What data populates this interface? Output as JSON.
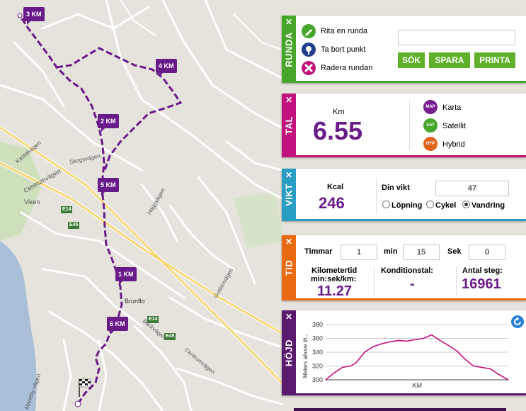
{
  "colors": {
    "runda": "#46a62a",
    "tal": "#c2127d",
    "vikt": "#2a9dc4",
    "tid": "#ea6a12",
    "hojd": "#5a1a6e",
    "route": "#6a1b8a",
    "button_green": "#5fb02b",
    "value_purple": "#6a1b8a"
  },
  "map": {
    "labels": [
      "Kastalvägen",
      "Skogsvägen",
      "Centrumvägen",
      "Viken",
      "E14",
      "E45",
      "Haggvägen",
      "Gustavvägen",
      "Brunflo",
      "E14",
      "E45",
      "Centrumvägen",
      "Bäckvägen",
      "Marieby vägen"
    ],
    "km_markers": [
      "3 KM",
      "4 KM",
      "2 KM",
      "5 KM",
      "1 KM",
      "6 KM"
    ]
  },
  "runda": {
    "tab": "RUNDA",
    "close": "✕",
    "draw": "Rita en runda",
    "remove_point": "Ta bort punkt",
    "delete_round": "Radera rundan",
    "search_value": "",
    "btn_search": "SÖK",
    "btn_save": "SPARA",
    "btn_print": "PRINTA"
  },
  "tal": {
    "tab": "TAL",
    "close": "✕",
    "unit": "Km",
    "distance": "6.55",
    "map_types": [
      {
        "icon": "MAP",
        "label": "Karta"
      },
      {
        "icon": "SAT",
        "label": "Satellit"
      },
      {
        "icon": "HYP",
        "label": "Hybrid"
      }
    ]
  },
  "vikt": {
    "tab": "VIKT",
    "close": "✕",
    "kcal_label": "Kcal",
    "kcal": "246",
    "weight_label": "Din vikt",
    "weight_value": "47",
    "modes": [
      {
        "label": "Löpning",
        "selected": false
      },
      {
        "label": "Cykel",
        "selected": false
      },
      {
        "label": "Vandring",
        "selected": true
      }
    ]
  },
  "tid": {
    "tab": "TID",
    "close": "✕",
    "hours_label": "Timmar",
    "hours": "1",
    "min_label": "min",
    "min": "15",
    "sec_label": "Sek",
    "sec": "0",
    "pace_label_1": "Kilometertid",
    "pace_label_2": "min:sek/km:",
    "pace": "11.27",
    "fitness_label": "Konditionstal:",
    "fitness": "-",
    "steps_label": "Antal steg:",
    "steps": "16961"
  },
  "hojd": {
    "tab": "HÖJD",
    "close": "✕",
    "refresh_icon": "refresh-icon"
  },
  "chart_data": {
    "type": "line",
    "title": "",
    "xlabel": "KM",
    "ylabel": "Meters above th...",
    "ylim": [
      300,
      380
    ],
    "yticks": [
      300,
      320,
      340,
      360,
      380
    ],
    "xlim": [
      0,
      6.55
    ],
    "x": [
      0,
      0.3,
      0.6,
      0.9,
      1.1,
      1.4,
      1.7,
      2.0,
      2.3,
      2.6,
      2.9,
      3.2,
      3.5,
      3.8,
      4.1,
      4.4,
      4.7,
      5.0,
      5.3,
      5.6,
      5.9,
      6.2,
      6.55
    ],
    "series": [
      {
        "values": [
          300,
          310,
          318,
          320,
          325,
          340,
          348,
          352,
          355,
          357,
          356,
          358,
          360,
          365,
          357,
          350,
          342,
          330,
          320,
          318,
          316,
          308,
          300
        ]
      }
    ],
    "grid": true,
    "color": "#c2127d"
  }
}
